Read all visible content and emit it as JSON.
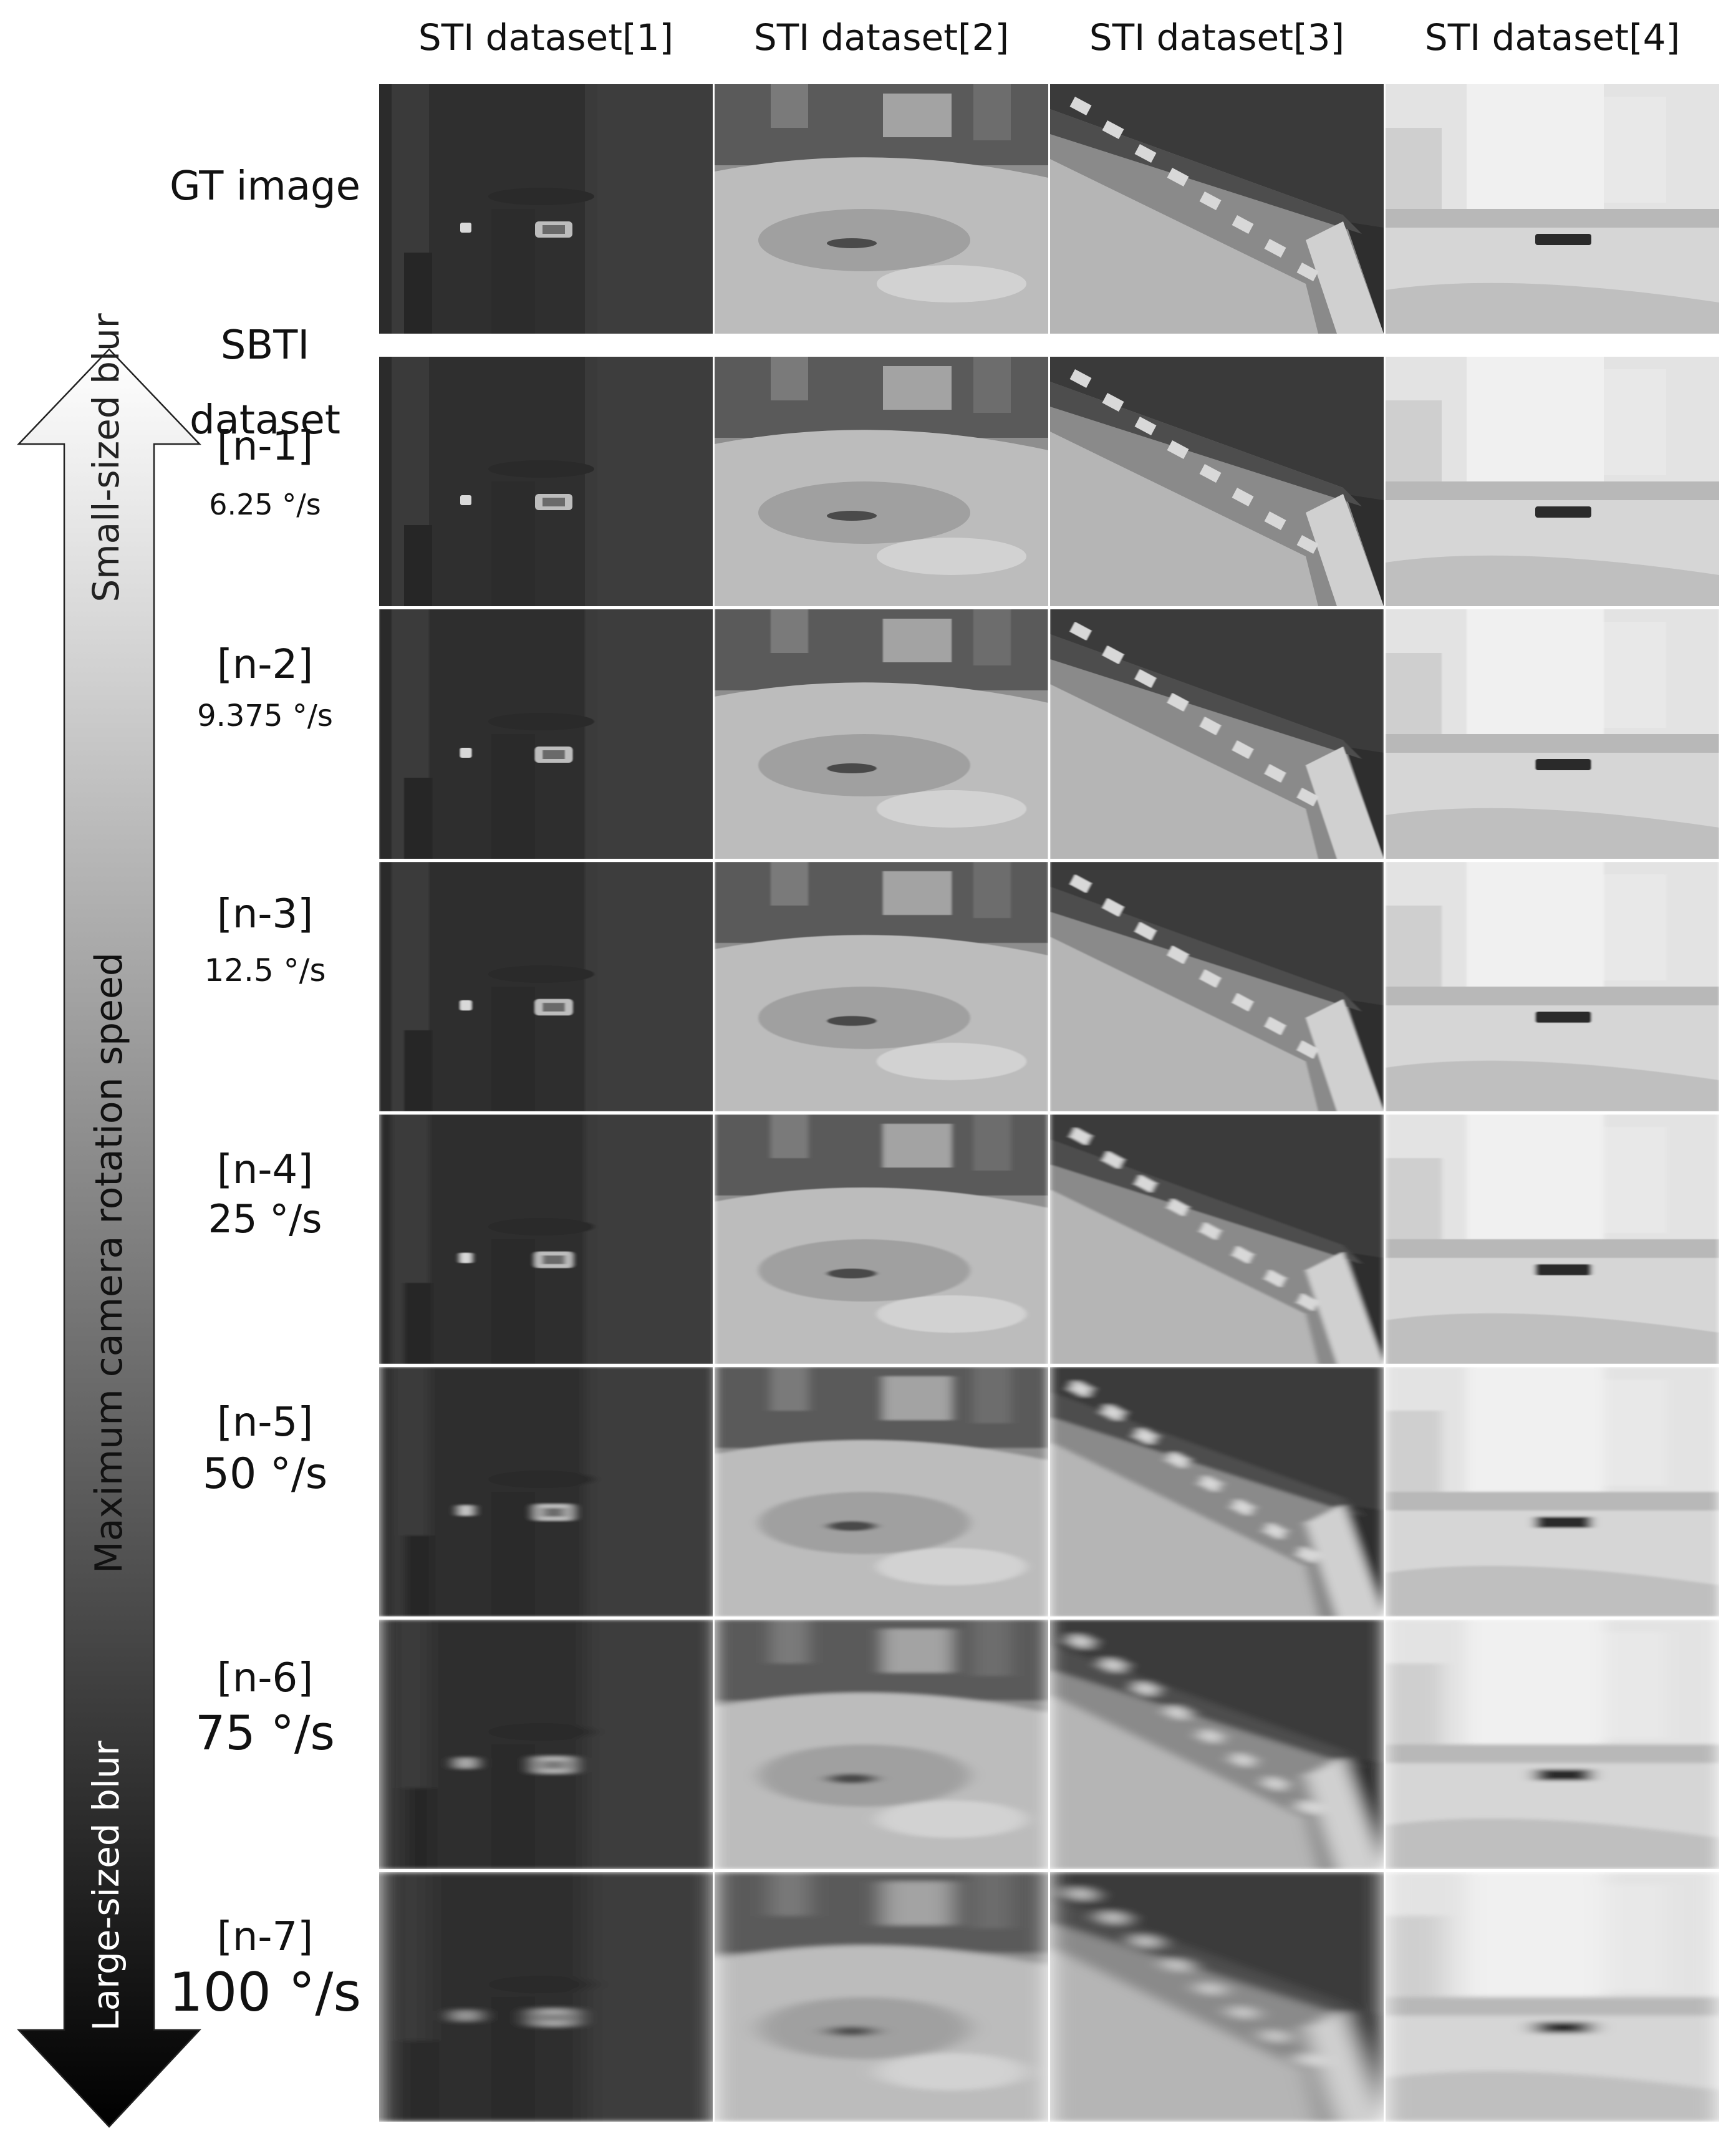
{
  "columns": [
    "STI dataset[1]",
    "STI dataset[2]",
    "STI dataset[3]",
    "STI dataset[4]"
  ],
  "gt_label": "GT image",
  "sbti_header": [
    "SBTI",
    "dataset"
  ],
  "rows": [
    {
      "name": "[n-1]",
      "speed": "6.25 °/s",
      "blur": 0
    },
    {
      "name": "[n-2]",
      "speed": "9.375 °/s",
      "blur": 0.6
    },
    {
      "name": "[n-3]",
      "speed": "12.5 °/s",
      "blur": 1.2
    },
    {
      "name": "[n-4]",
      "speed": "25 °/s",
      "blur": 2.5
    },
    {
      "name": "[n-5]",
      "speed": "50 °/s",
      "blur": 5
    },
    {
      "name": "[n-6]",
      "speed": "75 °/s",
      "blur": 8
    },
    {
      "name": "[n-7]",
      "speed": "100 °/s",
      "blur": 11
    }
  ],
  "axis": {
    "top_label": "Small-sized blur",
    "middle_label": "Maximum camera rotation speed",
    "bottom_label": "Large-sized blur",
    "gradient_top": "#ffffff",
    "gradient_bottom": "#000000"
  }
}
